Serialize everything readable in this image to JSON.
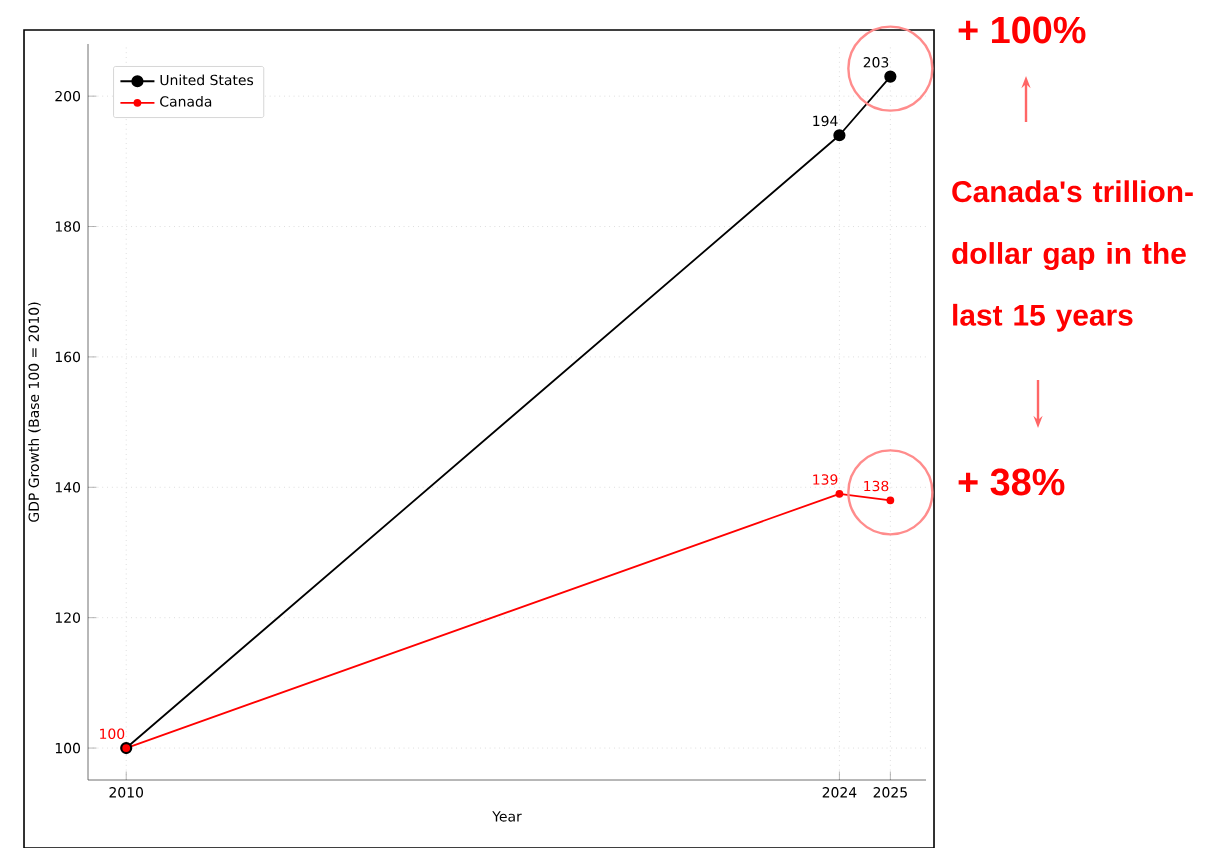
{
  "chart_data": {
    "type": "line",
    "xlabel": "Year",
    "ylabel": "GDP Growth (Base 100 = 2010)",
    "x": [
      2010,
      2024,
      2025
    ],
    "series": [
      {
        "name": "United States",
        "color": "#000000",
        "values": [
          100,
          194,
          203
        ],
        "value_labels": [
          null,
          "194",
          "203"
        ]
      },
      {
        "name": "Canada",
        "color": "#ff0000",
        "values": [
          100,
          139,
          138
        ],
        "value_labels": [
          "100",
          "139",
          "138"
        ]
      }
    ],
    "xlim": [
      2009.25,
      2025.7
    ],
    "ylim": [
      95.1,
      208
    ],
    "xticks": [
      2010,
      2024,
      2025
    ],
    "yticks": [
      100,
      120,
      140,
      160,
      180,
      200
    ],
    "grid": true,
    "legend": "top left",
    "marker": "circle",
    "line_style": "solid",
    "annotations": [
      "+ 100%",
      "Canada's trillion-dollar gap in the last 15 years",
      "+ 38%"
    ]
  }
}
